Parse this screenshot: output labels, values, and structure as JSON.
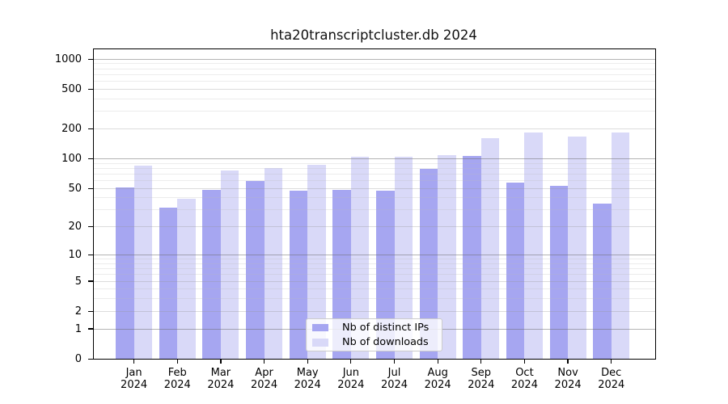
{
  "title": "hta20transcriptcluster.db 2024",
  "legend": {
    "items": [
      {
        "label": "Nb of distinct IPs",
        "series_key": "ips"
      },
      {
        "label": "Nb of downloads",
        "series_key": "downloads"
      }
    ]
  },
  "colors": {
    "ips_bar": "#a6a6f1",
    "downloads_bar": "#d9d9f8",
    "axis": "#000000",
    "grid_decade": "rgba(105,105,105,0.50)",
    "grid_labeled": "rgba(150,150,150,0.33)",
    "grid_minor": "rgba(185,185,185,0.28)",
    "legend_border": "#cccccc",
    "legend_bg": "rgba(255,255,255,0.8)"
  },
  "y_axis": {
    "tick_labels": [
      "0",
      "1",
      "2",
      "5",
      "10",
      "20",
      "50",
      "100",
      "200",
      "500",
      "1000"
    ]
  },
  "x_axis": {
    "months": [
      "Jan",
      "Feb",
      "Mar",
      "Apr",
      "May",
      "Jun",
      "Jul",
      "Aug",
      "Sep",
      "Oct",
      "Nov",
      "Dec"
    ],
    "year": "2024"
  },
  "chart_data": {
    "type": "bar",
    "title": "hta20transcriptcluster.db 2024",
    "categories": [
      "Jan 2024",
      "Feb 2024",
      "Mar 2024",
      "Apr 2024",
      "May 2024",
      "Jun 2024",
      "Jul 2024",
      "Aug 2024",
      "Sep 2024",
      "Oct 2024",
      "Nov 2024",
      "Dec 2024"
    ],
    "series": [
      {
        "name": "Nb of distinct IPs",
        "values": [
          51,
          32,
          48,
          60,
          47,
          48,
          47,
          79,
          107,
          57,
          53,
          35
        ]
      },
      {
        "name": "Nb of downloads",
        "values": [
          85,
          39,
          76,
          80,
          87,
          104,
          104,
          108,
          160,
          185,
          168,
          184
        ]
      }
    ],
    "yscale": "log1p",
    "yticks": [
      0,
      1,
      2,
      5,
      10,
      20,
      50,
      100,
      200,
      500,
      1000
    ],
    "ylim": [
      0,
      1250
    ],
    "grid": "on",
    "legend_position": "lower center inside plot"
  }
}
